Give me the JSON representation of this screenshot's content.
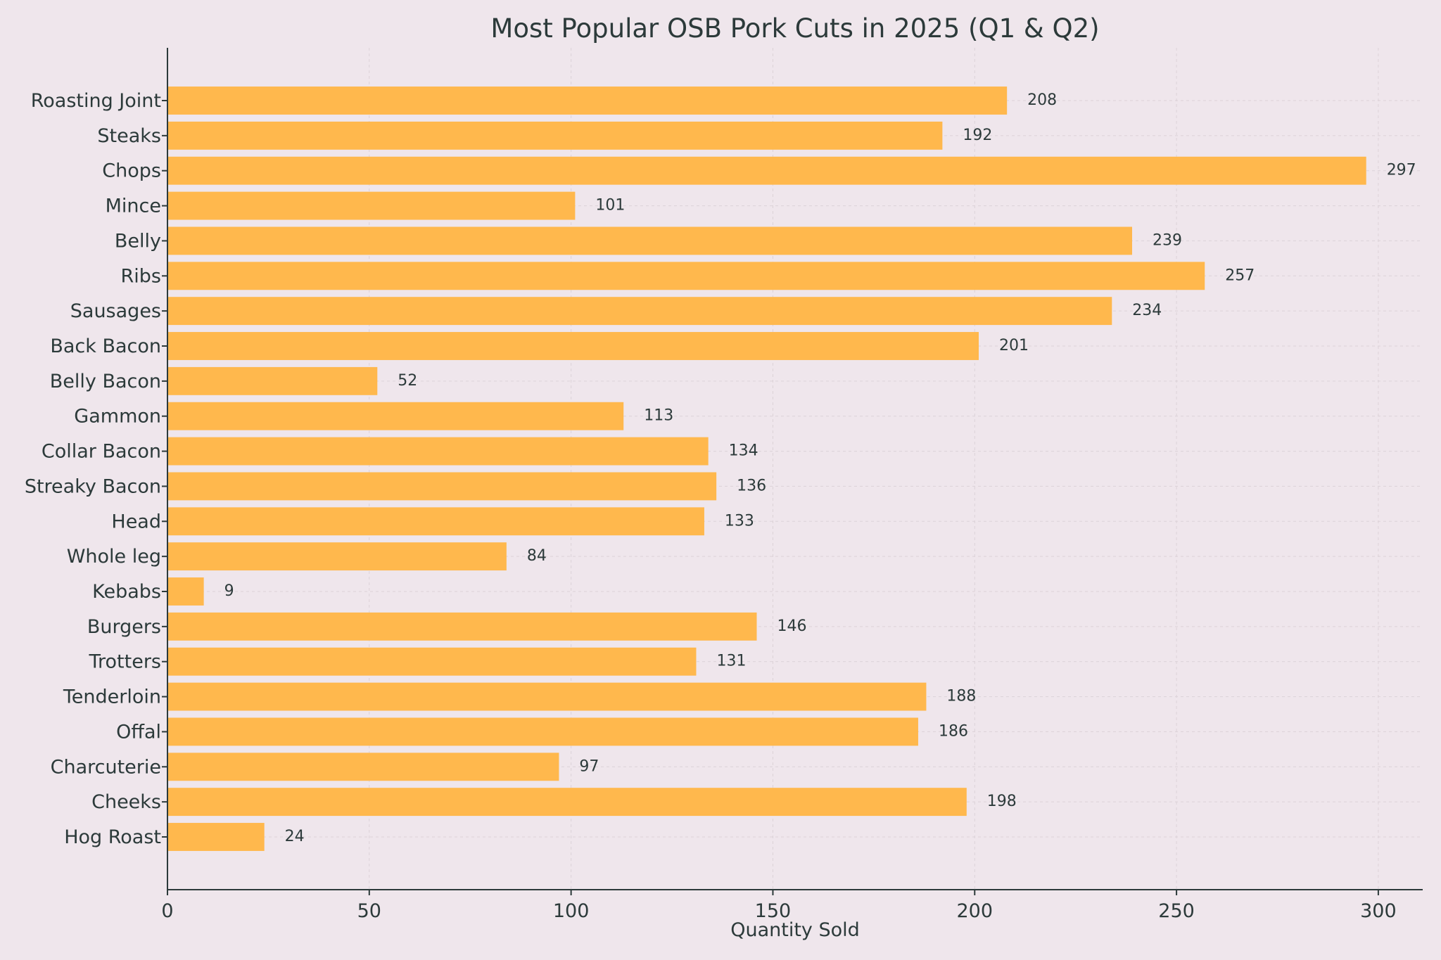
{
  "chart_data": {
    "type": "bar",
    "orientation": "horizontal",
    "title": "Most Popular OSB Pork Cuts in 2025 (Q1 & Q2)",
    "xlabel": "Quantity Sold",
    "ylabel": "",
    "xlim": [
      0,
      311
    ],
    "xticks": [
      0,
      50,
      100,
      150,
      200,
      250,
      300
    ],
    "grid": true,
    "categories": [
      "Roasting Joint",
      "Steaks",
      "Chops",
      "Mince",
      "Belly",
      "Ribs",
      "Sausages",
      "Back Bacon",
      "Belly Bacon",
      "Gammon",
      "Collar Bacon",
      "Streaky Bacon",
      "Head",
      "Whole leg",
      "Kebabs",
      "Burgers",
      "Trotters",
      "Tenderloin",
      "Offal",
      "Charcuterie",
      "Cheeks",
      "Hog Roast"
    ],
    "values": [
      208,
      192,
      297,
      101,
      239,
      257,
      234,
      201,
      52,
      113,
      134,
      136,
      133,
      84,
      9,
      146,
      131,
      188,
      186,
      97,
      198,
      24
    ],
    "bar_color": "#ffb84d"
  }
}
